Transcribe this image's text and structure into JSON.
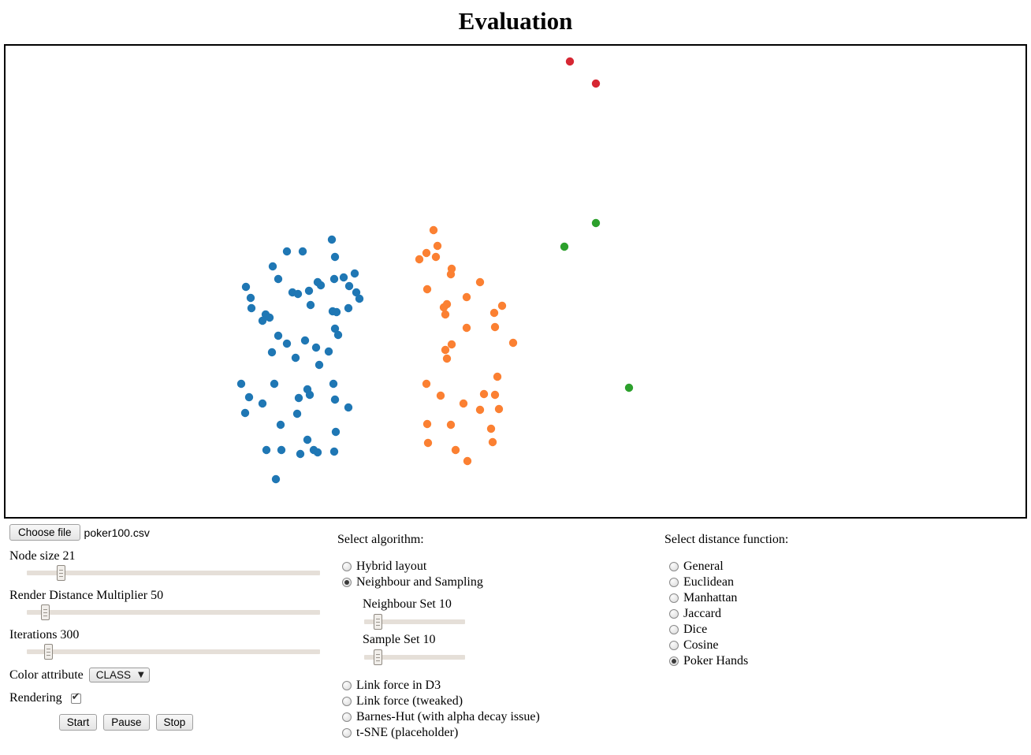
{
  "title": "Evaluation",
  "scatter": {
    "radius": 5.2,
    "groups": [
      {
        "name": "class-blue",
        "color": "#1f77b4",
        "points": [
          [
            414,
            246
          ],
          [
            357,
            261
          ],
          [
            377,
            261
          ],
          [
            418,
            268
          ],
          [
            339,
            280
          ],
          [
            346,
            296
          ],
          [
            396,
            300
          ],
          [
            400,
            304
          ],
          [
            417,
            296
          ],
          [
            429,
            294
          ],
          [
            443,
            289
          ],
          [
            305,
            306
          ],
          [
            436,
            305
          ],
          [
            445,
            313
          ],
          [
            449,
            321
          ],
          [
            364,
            313
          ],
          [
            371,
            315
          ],
          [
            385,
            311
          ],
          [
            311,
            320
          ],
          [
            387,
            329
          ],
          [
            312,
            333
          ],
          [
            415,
            337
          ],
          [
            420,
            338
          ],
          [
            435,
            333
          ],
          [
            330,
            341
          ],
          [
            335,
            345
          ],
          [
            326,
            349
          ],
          [
            346,
            368
          ],
          [
            357,
            378
          ],
          [
            380,
            374
          ],
          [
            394,
            383
          ],
          [
            418,
            359
          ],
          [
            422,
            367
          ],
          [
            410,
            388
          ],
          [
            338,
            389
          ],
          [
            368,
            396
          ],
          [
            398,
            405
          ],
          [
            299,
            429
          ],
          [
            341,
            429
          ],
          [
            416,
            429
          ],
          [
            383,
            436
          ],
          [
            386,
            443
          ],
          [
            309,
            446
          ],
          [
            372,
            447
          ],
          [
            326,
            454
          ],
          [
            418,
            449
          ],
          [
            435,
            459
          ],
          [
            304,
            466
          ],
          [
            370,
            467
          ],
          [
            349,
            481
          ],
          [
            419,
            490
          ],
          [
            383,
            500
          ],
          [
            331,
            513
          ],
          [
            350,
            513
          ],
          [
            374,
            518
          ],
          [
            391,
            513
          ],
          [
            396,
            516
          ],
          [
            417,
            515
          ],
          [
            343,
            550
          ]
        ]
      },
      {
        "name": "class-orange",
        "color": "#fb8032",
        "points": [
          [
            543,
            234
          ],
          [
            548,
            254
          ],
          [
            534,
            263
          ],
          [
            525,
            271
          ],
          [
            546,
            268
          ],
          [
            566,
            283
          ],
          [
            565,
            290
          ],
          [
            602,
            300
          ],
          [
            535,
            309
          ],
          [
            585,
            319
          ],
          [
            560,
            328
          ],
          [
            556,
            332
          ],
          [
            558,
            341
          ],
          [
            630,
            330
          ],
          [
            620,
            339
          ],
          [
            621,
            357
          ],
          [
            585,
            358
          ],
          [
            644,
            377
          ],
          [
            566,
            379
          ],
          [
            558,
            386
          ],
          [
            560,
            397
          ],
          [
            624,
            420
          ],
          [
            534,
            429
          ],
          [
            607,
            442
          ],
          [
            621,
            443
          ],
          [
            552,
            444
          ],
          [
            581,
            454
          ],
          [
            602,
            462
          ],
          [
            626,
            461
          ],
          [
            535,
            480
          ],
          [
            565,
            481
          ],
          [
            616,
            486
          ],
          [
            618,
            503
          ],
          [
            536,
            504
          ],
          [
            571,
            513
          ],
          [
            586,
            527
          ]
        ]
      },
      {
        "name": "class-green",
        "color": "#2ca02c",
        "points": [
          [
            749,
            225
          ],
          [
            709,
            255
          ],
          [
            791,
            434
          ]
        ]
      },
      {
        "name": "class-red",
        "color": "#d62733",
        "points": [
          [
            716,
            20
          ],
          [
            749,
            48
          ]
        ]
      }
    ]
  },
  "file_row": {
    "button": "Choose file",
    "filename": "poker100.csv"
  },
  "left_controls": {
    "node_size": {
      "label": "Node size",
      "value": "21",
      "min": "0",
      "max": "200"
    },
    "render_distance": {
      "label": "Render Distance Multiplier",
      "value": "50",
      "min": "0",
      "max": "1000"
    },
    "iterations": {
      "label": "Iterations",
      "value": "300",
      "min": "0",
      "max": "5000"
    },
    "color_attribute": {
      "label": "Color attribute",
      "value": "CLASS"
    },
    "rendering": {
      "label": "Rendering",
      "checked": true
    },
    "buttons": {
      "start": "Start",
      "pause": "Pause",
      "stop": "Stop"
    }
  },
  "algorithm_panel": {
    "heading": "Select algorithm:",
    "options_top": [
      {
        "label": "Hybrid layout",
        "selected": false
      },
      {
        "label": "Neighbour and Sampling",
        "selected": true
      }
    ],
    "neighbour_set": {
      "label": "Neighbour Set",
      "value": "10",
      "min": "0",
      "max": "100"
    },
    "sample_set": {
      "label": "Sample Set",
      "value": "10",
      "min": "0",
      "max": "100"
    },
    "options_bottom": [
      {
        "label": "Link force in D3",
        "selected": false
      },
      {
        "label": "Link force (tweaked)",
        "selected": false
      },
      {
        "label": "Barnes-Hut (with alpha decay issue)",
        "selected": false
      },
      {
        "label": "t-SNE (placeholder)",
        "selected": false
      }
    ]
  },
  "distance_panel": {
    "heading": "Select distance function:",
    "options": [
      {
        "label": "General",
        "selected": false
      },
      {
        "label": "Euclidean",
        "selected": false
      },
      {
        "label": "Manhattan",
        "selected": false
      },
      {
        "label": "Jaccard",
        "selected": false
      },
      {
        "label": "Dice",
        "selected": false
      },
      {
        "label": "Cosine",
        "selected": false
      },
      {
        "label": "Poker Hands",
        "selected": true
      }
    ]
  }
}
